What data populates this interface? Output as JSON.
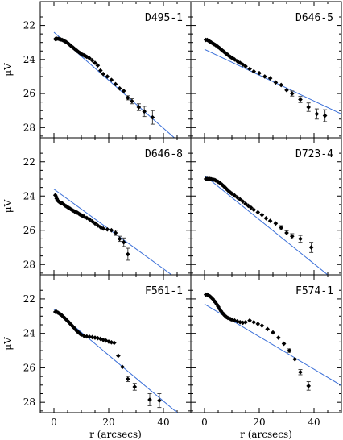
{
  "chart_data": [
    {
      "type": "scatter",
      "title": "D495-1",
      "xlabel": "",
      "ylabel": "μV",
      "xlim": [
        -5,
        50
      ],
      "ylim": [
        28.6,
        20.6
      ],
      "points": [
        [
          0.5,
          22.8
        ],
        [
          1,
          22.78
        ],
        [
          1.5,
          22.78
        ],
        [
          2,
          22.8
        ],
        [
          2.5,
          22.82
        ],
        [
          3,
          22.85
        ],
        [
          3.5,
          22.88
        ],
        [
          4,
          22.93
        ],
        [
          4.5,
          22.98
        ],
        [
          5,
          23.03
        ],
        [
          5.5,
          23.1
        ],
        [
          6,
          23.17
        ],
        [
          6.5,
          23.24
        ],
        [
          7,
          23.3
        ],
        [
          7.5,
          23.37
        ],
        [
          8,
          23.43
        ],
        [
          8.5,
          23.5
        ],
        [
          9,
          23.56
        ],
        [
          9.5,
          23.62
        ],
        [
          10,
          23.68
        ],
        [
          10.5,
          23.72
        ],
        [
          11,
          23.76
        ],
        [
          11.5,
          23.8
        ],
        [
          12,
          23.84
        ],
        [
          13,
          23.93
        ],
        [
          14,
          24.05
        ],
        [
          15,
          24.2
        ],
        [
          16,
          24.35
        ],
        [
          17,
          24.65
        ],
        [
          18,
          24.85
        ],
        [
          19.5,
          25.0
        ],
        [
          21,
          25.2
        ],
        [
          22.5,
          25.45
        ],
        [
          24,
          25.7
        ],
        [
          25.5,
          25.85
        ],
        [
          27,
          26.25
        ],
        [
          28.5,
          26.45
        ],
        [
          31,
          26.8
        ],
        [
          33,
          27.05
        ],
        [
          36,
          27.4
        ]
      ],
      "errors": [
        [
          27,
          0.12
        ],
        [
          28.5,
          0.15
        ],
        [
          31,
          0.2
        ],
        [
          33,
          0.3
        ],
        [
          36,
          0.4
        ]
      ],
      "fit": [
        [
          0,
          22.4
        ],
        [
          44,
          28.6
        ]
      ]
    },
    {
      "type": "scatter",
      "title": "D646-5",
      "xlabel": "",
      "ylabel": "μV",
      "xlim": [
        -5,
        50
      ],
      "ylim": [
        28.6,
        20.6
      ],
      "points": [
        [
          0.5,
          22.85
        ],
        [
          1,
          22.85
        ],
        [
          1.5,
          22.9
        ],
        [
          2,
          22.95
        ],
        [
          2.5,
          23.0
        ],
        [
          3,
          23.05
        ],
        [
          3.5,
          23.1
        ],
        [
          4,
          23.15
        ],
        [
          4.5,
          23.2
        ],
        [
          5,
          23.27
        ],
        [
          5.5,
          23.33
        ],
        [
          6,
          23.4
        ],
        [
          6.5,
          23.47
        ],
        [
          7,
          23.53
        ],
        [
          7.5,
          23.6
        ],
        [
          8,
          23.67
        ],
        [
          8.5,
          23.72
        ],
        [
          9,
          23.8
        ],
        [
          9.5,
          23.85
        ],
        [
          10,
          23.9
        ],
        [
          10.5,
          23.95
        ],
        [
          11,
          24.0
        ],
        [
          12,
          24.1
        ],
        [
          13,
          24.2
        ],
        [
          14,
          24.3
        ],
        [
          15,
          24.4
        ],
        [
          16.5,
          24.55
        ],
        [
          18,
          24.7
        ],
        [
          20,
          24.8
        ],
        [
          22,
          25.0
        ],
        [
          24,
          25.1
        ],
        [
          26,
          25.35
        ],
        [
          28,
          25.5
        ],
        [
          30,
          25.8
        ],
        [
          32,
          26.0
        ],
        [
          35,
          26.35
        ],
        [
          38,
          26.8
        ],
        [
          41,
          27.2
        ],
        [
          44,
          27.3
        ]
      ],
      "errors": [
        [
          32,
          0.15
        ],
        [
          35,
          0.18
        ],
        [
          38,
          0.25
        ],
        [
          41,
          0.3
        ],
        [
          44,
          0.35
        ]
      ],
      "fit": [
        [
          0,
          23.4
        ],
        [
          50,
          27.2
        ]
      ]
    },
    {
      "type": "scatter",
      "title": "D646-8",
      "xlabel": "",
      "ylabel": "μV",
      "xlim": [
        -5,
        50
      ],
      "ylim": [
        28.6,
        20.6
      ],
      "points": [
        [
          0.5,
          23.95
        ],
        [
          0.8,
          24.05
        ],
        [
          1,
          24.15
        ],
        [
          1.3,
          24.25
        ],
        [
          1.6,
          24.3
        ],
        [
          2,
          24.35
        ],
        [
          2.5,
          24.4
        ],
        [
          3,
          24.42
        ],
        [
          3.5,
          24.48
        ],
        [
          4,
          24.55
        ],
        [
          4.5,
          24.6
        ],
        [
          5,
          24.65
        ],
        [
          5.5,
          24.7
        ],
        [
          6,
          24.75
        ],
        [
          6.5,
          24.8
        ],
        [
          7,
          24.85
        ],
        [
          7.5,
          24.9
        ],
        [
          8,
          24.93
        ],
        [
          8.5,
          24.97
        ],
        [
          9,
          25.02
        ],
        [
          9.5,
          25.08
        ],
        [
          10,
          25.12
        ],
        [
          10.5,
          25.17
        ],
        [
          11,
          25.2
        ],
        [
          12,
          25.28
        ],
        [
          13,
          25.37
        ],
        [
          14,
          25.48
        ],
        [
          15,
          25.6
        ],
        [
          16,
          25.72
        ],
        [
          17,
          25.82
        ],
        [
          18,
          25.9
        ],
        [
          19.5,
          25.95
        ],
        [
          21,
          26.0
        ],
        [
          22.5,
          26.15
        ],
        [
          24,
          26.5
        ],
        [
          25.5,
          26.7
        ],
        [
          27,
          27.4
        ]
      ],
      "errors": [
        [
          22.5,
          0.15
        ],
        [
          24,
          0.15
        ],
        [
          25.5,
          0.25
        ],
        [
          27,
          0.35
        ]
      ],
      "fit": [
        [
          0,
          23.6
        ],
        [
          43,
          28.6
        ]
      ]
    },
    {
      "type": "scatter",
      "title": "D723-4",
      "xlabel": "",
      "ylabel": "μV",
      "xlim": [
        -5,
        50
      ],
      "ylim": [
        28.6,
        20.6
      ],
      "points": [
        [
          0.5,
          23.0
        ],
        [
          1,
          23.0
        ],
        [
          1.5,
          23.0
        ],
        [
          2,
          23.0
        ],
        [
          2.5,
          23.02
        ],
        [
          3,
          23.03
        ],
        [
          3.5,
          23.05
        ],
        [
          4,
          23.08
        ],
        [
          4.5,
          23.12
        ],
        [
          5,
          23.17
        ],
        [
          5.5,
          23.22
        ],
        [
          6,
          23.28
        ],
        [
          6.5,
          23.35
        ],
        [
          7,
          23.42
        ],
        [
          7.5,
          23.5
        ],
        [
          8,
          23.58
        ],
        [
          8.5,
          23.66
        ],
        [
          9,
          23.74
        ],
        [
          9.5,
          23.8
        ],
        [
          10,
          23.86
        ],
        [
          11,
          23.97
        ],
        [
          12,
          24.08
        ],
        [
          13,
          24.2
        ],
        [
          14,
          24.32
        ],
        [
          15,
          24.45
        ],
        [
          16,
          24.57
        ],
        [
          17,
          24.68
        ],
        [
          18,
          24.8
        ],
        [
          19.5,
          24.95
        ],
        [
          21,
          25.1
        ],
        [
          22.5,
          25.3
        ],
        [
          24,
          25.45
        ],
        [
          26,
          25.6
        ],
        [
          28,
          25.85
        ],
        [
          30,
          26.15
        ],
        [
          32,
          26.35
        ],
        [
          35,
          26.5
        ],
        [
          39,
          27.0
        ]
      ],
      "errors": [
        [
          28,
          0.12
        ],
        [
          30,
          0.12
        ],
        [
          32,
          0.15
        ],
        [
          35,
          0.2
        ],
        [
          39,
          0.3
        ]
      ],
      "fit": [
        [
          0,
          22.8
        ],
        [
          45,
          28.6
        ]
      ]
    },
    {
      "type": "scatter",
      "title": "F561-1",
      "xlabel": "r (arcsecs)",
      "ylabel": "μV",
      "xlim": [
        -5,
        50
      ],
      "ylim": [
        28.6,
        20.6
      ],
      "points": [
        [
          0.5,
          22.75
        ],
        [
          1,
          22.75
        ],
        [
          1.5,
          22.8
        ],
        [
          2,
          22.85
        ],
        [
          2.5,
          22.9
        ],
        [
          3,
          22.97
        ],
        [
          3.5,
          23.05
        ],
        [
          4,
          23.12
        ],
        [
          4.5,
          23.2
        ],
        [
          5,
          23.28
        ],
        [
          5.5,
          23.36
        ],
        [
          6,
          23.45
        ],
        [
          6.5,
          23.53
        ],
        [
          7,
          23.62
        ],
        [
          7.5,
          23.7
        ],
        [
          8,
          23.8
        ],
        [
          8.5,
          23.88
        ],
        [
          9,
          23.95
        ],
        [
          9.5,
          24.02
        ],
        [
          10,
          24.08
        ],
        [
          11,
          24.15
        ],
        [
          12,
          24.18
        ],
        [
          13,
          24.2
        ],
        [
          14,
          24.22
        ],
        [
          15,
          24.25
        ],
        [
          16,
          24.28
        ],
        [
          17,
          24.32
        ],
        [
          18,
          24.38
        ],
        [
          19,
          24.42
        ],
        [
          20,
          24.48
        ],
        [
          21,
          24.52
        ],
        [
          22,
          24.55
        ],
        [
          23.5,
          25.3
        ],
        [
          25,
          25.95
        ],
        [
          27,
          26.65
        ],
        [
          29.5,
          27.1
        ],
        [
          35,
          27.85
        ],
        [
          38.5,
          27.9
        ]
      ],
      "errors": [
        [
          27,
          0.15
        ],
        [
          29.5,
          0.2
        ],
        [
          35,
          0.35
        ],
        [
          38.5,
          0.4
        ]
      ],
      "fit": [
        [
          0,
          22.6
        ],
        [
          45,
          28.6
        ]
      ]
    },
    {
      "type": "scatter",
      "title": "F574-1",
      "xlabel": "r (arcsecs)",
      "ylabel": "μV",
      "xlim": [
        -5,
        50
      ],
      "ylim": [
        28.6,
        20.6
      ],
      "points": [
        [
          0.5,
          21.75
        ],
        [
          1,
          21.75
        ],
        [
          1.5,
          21.8
        ],
        [
          2,
          21.85
        ],
        [
          2.5,
          21.92
        ],
        [
          3,
          22.0
        ],
        [
          3.5,
          22.1
        ],
        [
          4,
          22.2
        ],
        [
          4.5,
          22.32
        ],
        [
          5,
          22.45
        ],
        [
          5.5,
          22.58
        ],
        [
          6,
          22.7
        ],
        [
          6.5,
          22.8
        ],
        [
          7,
          22.9
        ],
        [
          7.5,
          22.98
        ],
        [
          8,
          23.05
        ],
        [
          8.5,
          23.1
        ],
        [
          9,
          23.13
        ],
        [
          9.5,
          23.17
        ],
        [
          10,
          23.2
        ],
        [
          11,
          23.25
        ],
        [
          12,
          23.3
        ],
        [
          13,
          23.35
        ],
        [
          14,
          23.38
        ],
        [
          15,
          23.35
        ],
        [
          16.5,
          23.25
        ],
        [
          18,
          23.35
        ],
        [
          19.5,
          23.45
        ],
        [
          21,
          23.55
        ],
        [
          23,
          23.75
        ],
        [
          25,
          23.95
        ],
        [
          27,
          24.25
        ],
        [
          29,
          24.6
        ],
        [
          31,
          25.0
        ],
        [
          33,
          25.5
        ],
        [
          35,
          26.25
        ],
        [
          38,
          27.05
        ]
      ],
      "errors": [
        [
          31,
          0.1
        ],
        [
          35,
          0.15
        ],
        [
          38,
          0.25
        ]
      ],
      "fit": [
        [
          0,
          22.3
        ],
        [
          55,
          27.5
        ]
      ]
    }
  ],
  "axes": {
    "y_ticks": [
      22,
      24,
      26,
      28
    ],
    "x_ticks": [
      0,
      20,
      40
    ],
    "ylabel": "μV",
    "xlabel": "r (arcsecs)"
  },
  "colors": {
    "fit": "#3a6fd8",
    "points": "#000000",
    "frame": "#000000"
  }
}
